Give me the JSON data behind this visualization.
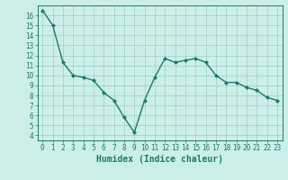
{
  "x": [
    0,
    1,
    2,
    3,
    4,
    5,
    6,
    7,
    8,
    9,
    10,
    11,
    12,
    13,
    14,
    15,
    16,
    17,
    18,
    19,
    20,
    21,
    22,
    23
  ],
  "y": [
    16.5,
    15.0,
    11.3,
    10.0,
    9.8,
    9.5,
    8.3,
    7.5,
    5.8,
    4.3,
    7.5,
    9.8,
    11.7,
    11.3,
    11.5,
    11.7,
    11.3,
    10.0,
    9.3,
    9.3,
    8.8,
    8.5,
    7.8,
    7.5
  ],
  "line_color": "#1a7a6e",
  "marker": "D",
  "marker_size": 2.0,
  "bg_color": "#cceee8",
  "grid_color": "#99cccc",
  "xlabel": "Humidex (Indice chaleur)",
  "xlim": [
    -0.5,
    23.5
  ],
  "ylim": [
    3.5,
    17.0
  ],
  "yticks": [
    4,
    5,
    6,
    7,
    8,
    9,
    10,
    11,
    12,
    13,
    14,
    15,
    16
  ],
  "xticks": [
    0,
    1,
    2,
    3,
    4,
    5,
    6,
    7,
    8,
    9,
    10,
    11,
    12,
    13,
    14,
    15,
    16,
    17,
    18,
    19,
    20,
    21,
    22,
    23
  ],
  "tick_label_fontsize": 5.5,
  "xlabel_fontsize": 7.0,
  "axis_color": "#1a7a6e",
  "line_width": 1.0
}
